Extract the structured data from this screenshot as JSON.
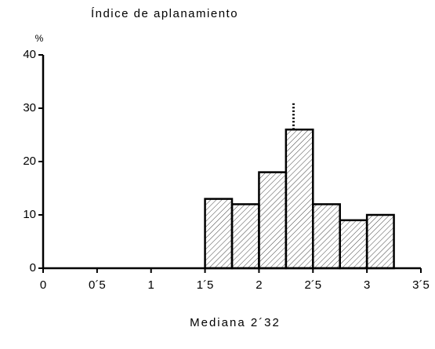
{
  "chart_data": {
    "type": "histogram",
    "title": "Índice de aplanamiento",
    "y_label": "%",
    "bins": [
      1.5,
      1.75,
      2,
      2.25,
      2.5,
      2.75,
      3,
      3.25
    ],
    "values": [
      13,
      12,
      18,
      26,
      12,
      9,
      10
    ],
    "color": "#000000",
    "hatch": true,
    "xlim": [
      0,
      3.5
    ],
    "xticks": [
      0,
      {
        "value": 0.5,
        "label": "0´5"
      },
      1,
      {
        "value": 1.5,
        "label": "1´5"
      },
      2,
      {
        "value": 2.5,
        "label": "2´5"
      },
      3,
      {
        "value": 3.5,
        "label": "3´5"
      }
    ],
    "ylim": [
      0,
      40
    ],
    "yticks": [
      0,
      10,
      20,
      30,
      40
    ],
    "annotation": {
      "x": 2.32,
      "y": 31,
      "label": "Mediana 2´32"
    }
  }
}
